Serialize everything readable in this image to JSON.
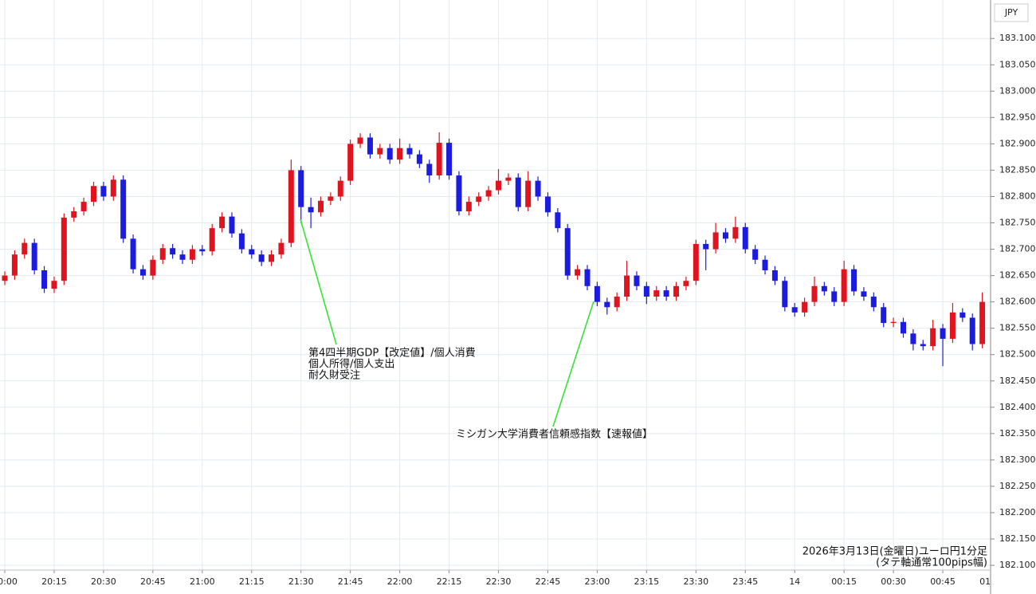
{
  "chart_data": {
    "type": "candlestick",
    "currency": "JPY",
    "footer": [
      "2026年3月13日(金曜日)ユーロ円1分足",
      "(タテ軸通常100pips幅)"
    ],
    "annotations": [
      {
        "lines": [
          "第4四半期GDP【改定値】/個人消費",
          "個人所得/個人支出",
          "耐久財受注"
        ]
      },
      {
        "lines": [
          "ミシガン大学消費者信頼感指数【速報値】"
        ]
      }
    ],
    "up_color": "#e0141e",
    "down_color": "#1c1ce0",
    "annotation_color": "#33e633",
    "grid": true,
    "ylim": [
      182.091,
      183.173
    ],
    "yticks": [
      {
        "value": 182.1,
        "label": "182.100"
      },
      {
        "value": 182.15,
        "label": "182.150"
      },
      {
        "value": 182.2,
        "label": "182.200"
      },
      {
        "value": 182.25,
        "label": "182.250"
      },
      {
        "value": 182.3,
        "label": "182.300"
      },
      {
        "value": 182.35,
        "label": "182.350"
      },
      {
        "value": 182.4,
        "label": "182.400"
      },
      {
        "value": 182.45,
        "label": "182.450"
      },
      {
        "value": 182.5,
        "label": "182.500"
      },
      {
        "value": 182.55,
        "label": "182.550"
      },
      {
        "value": 182.6,
        "label": "182.600"
      },
      {
        "value": 182.65,
        "label": "182.650"
      },
      {
        "value": 182.7,
        "label": "182.700"
      },
      {
        "value": 182.75,
        "label": "182.750"
      },
      {
        "value": 182.8,
        "label": "182.800"
      },
      {
        "value": 182.85,
        "label": "182.850"
      },
      {
        "value": 182.9,
        "label": "182.900"
      },
      {
        "value": 182.95,
        "label": "182.950"
      },
      {
        "value": 183,
        "label": "183.000"
      },
      {
        "value": 183.05,
        "label": "183.050"
      },
      {
        "value": 183.1,
        "label": "183.100"
      }
    ],
    "xticks": [
      "20:00",
      "20:15",
      "20:30",
      "20:45",
      "21:00",
      "21:15",
      "21:30",
      "21:45",
      "22:00",
      "22:15",
      "22:30",
      "22:45",
      "23:00",
      "23:15",
      "23:30",
      "23:45",
      {
        "value": "00:00",
        "label": "14"
      },
      "00:15",
      "00:30",
      "00:45",
      "01:00"
    ],
    "categories": [
      "20:00",
      "20:03",
      "20:06",
      "20:09",
      "20:12",
      "20:15",
      "20:18",
      "20:21",
      "20:24",
      "20:27",
      "20:30",
      "20:33",
      "20:36",
      "20:39",
      "20:42",
      "20:45",
      "20:48",
      "20:51",
      "20:54",
      "20:57",
      "21:00",
      "21:03",
      "21:06",
      "21:09",
      "21:12",
      "21:15",
      "21:18",
      "21:21",
      "21:24",
      "21:27",
      "21:30",
      "21:33",
      "21:36",
      "21:39",
      "21:42",
      "21:45",
      "21:48",
      "21:51",
      "21:54",
      "21:57",
      "22:00",
      "22:03",
      "22:06",
      "22:09",
      "22:12",
      "22:15",
      "22:18",
      "22:21",
      "22:24",
      "22:27",
      "22:30",
      "22:33",
      "22:36",
      "22:39",
      "22:42",
      "22:45",
      "22:48",
      "22:51",
      "22:54",
      "22:57",
      "23:00",
      "23:03",
      "23:06",
      "23:09",
      "23:12",
      "23:15",
      "23:18",
      "23:21",
      "23:24",
      "23:27",
      "23:30",
      "23:33",
      "23:36",
      "23:39",
      "23:42",
      "23:45",
      "23:48",
      "23:51",
      "23:54",
      "23:57",
      "00:00",
      "00:03",
      "00:06",
      "00:09",
      "00:12",
      "00:15",
      "00:18",
      "00:21",
      "00:24",
      "00:27",
      "00:30",
      "00:33",
      "00:36",
      "00:39",
      "00:42",
      "00:45",
      "00:48",
      "00:51",
      "00:54",
      "00:57"
    ],
    "open": [
      182.64,
      182.65,
      182.69,
      182.712,
      182.66,
      182.625,
      182.64,
      182.76,
      182.772,
      182.79,
      182.82,
      182.8,
      182.832,
      182.72,
      182.662,
      182.65,
      182.68,
      182.702,
      182.69,
      182.68,
      182.7,
      182.696,
      182.74,
      182.762,
      182.73,
      182.7,
      182.69,
      182.676,
      182.69,
      182.712,
      182.85,
      182.78,
      182.77,
      182.792,
      182.8,
      182.83,
      182.9,
      182.912,
      182.88,
      182.892,
      182.87,
      182.892,
      182.88,
      182.862,
      182.84,
      182.902,
      182.84,
      182.772,
      182.79,
      182.8,
      182.812,
      182.83,
      182.836,
      182.78,
      182.83,
      182.8,
      182.77,
      182.74,
      182.65,
      182.662,
      182.63,
      182.6,
      182.59,
      182.61,
      182.65,
      182.63,
      182.61,
      182.622,
      182.61,
      182.63,
      182.64,
      182.71,
      182.7,
      182.732,
      182.72,
      182.742,
      182.7,
      182.68,
      182.66,
      182.64,
      182.59,
      182.58,
      182.6,
      182.63,
      182.62,
      182.6,
      182.662,
      182.62,
      182.61,
      182.59,
      182.56,
      182.562,
      182.54,
      182.52,
      182.516,
      182.55,
      182.53,
      182.58,
      182.57,
      182.52
    ],
    "high": [
      182.658,
      182.698,
      182.72,
      182.72,
      182.668,
      182.648,
      182.768,
      182.78,
      182.798,
      182.828,
      182.828,
      182.84,
      182.84,
      182.728,
      182.67,
      182.688,
      182.71,
      182.71,
      182.698,
      182.708,
      182.708,
      182.748,
      182.77,
      182.77,
      182.738,
      182.708,
      182.698,
      182.698,
      182.72,
      182.87,
      182.858,
      182.798,
      182.8,
      182.808,
      182.838,
      182.908,
      182.92,
      182.92,
      182.9,
      182.9,
      182.91,
      182.9,
      182.888,
      182.87,
      182.922,
      182.91,
      182.848,
      182.8,
      182.808,
      182.82,
      182.852,
      182.844,
      182.844,
      182.848,
      182.838,
      182.808,
      182.778,
      182.748,
      182.67,
      182.67,
      182.638,
      182.608,
      182.618,
      182.678,
      182.658,
      182.638,
      182.63,
      182.63,
      182.638,
      182.648,
      182.718,
      182.718,
      182.75,
      182.74,
      182.762,
      182.75,
      182.708,
      182.688,
      182.668,
      182.648,
      182.598,
      182.608,
      182.648,
      182.638,
      182.628,
      182.678,
      182.67,
      182.628,
      182.618,
      182.598,
      182.57,
      182.57,
      182.548,
      182.528,
      182.566,
      182.558,
      182.598,
      182.588,
      182.578,
      182.618
    ],
    "low": [
      182.632,
      182.642,
      182.682,
      182.652,
      182.617,
      182.617,
      182.632,
      182.752,
      182.764,
      182.782,
      182.792,
      182.792,
      182.712,
      182.654,
      182.642,
      182.642,
      182.672,
      182.682,
      182.672,
      182.672,
      182.688,
      182.688,
      182.732,
      182.722,
      182.692,
      182.682,
      182.668,
      182.668,
      182.682,
      182.704,
      182.75,
      182.74,
      182.762,
      182.784,
      182.792,
      182.822,
      182.892,
      182.872,
      182.872,
      182.862,
      182.862,
      182.872,
      182.854,
      182.826,
      182.832,
      182.832,
      182.764,
      182.764,
      182.782,
      182.792,
      182.804,
      182.822,
      182.772,
      182.772,
      182.792,
      182.762,
      182.732,
      182.642,
      182.642,
      182.622,
      182.592,
      182.576,
      182.582,
      182.602,
      182.622,
      182.596,
      182.602,
      182.602,
      182.602,
      182.622,
      182.632,
      182.66,
      182.692,
      182.712,
      182.712,
      182.692,
      182.672,
      182.652,
      182.632,
      182.582,
      182.572,
      182.572,
      182.592,
      182.612,
      182.592,
      182.592,
      182.612,
      182.602,
      182.582,
      182.552,
      182.552,
      182.532,
      182.508,
      182.508,
      182.508,
      182.478,
      182.522,
      182.562,
      182.508,
      182.512
    ],
    "close": [
      182.65,
      182.69,
      182.712,
      182.66,
      182.625,
      182.64,
      182.76,
      182.772,
      182.79,
      182.82,
      182.8,
      182.832,
      182.72,
      182.662,
      182.65,
      182.68,
      182.702,
      182.69,
      182.68,
      182.7,
      182.696,
      182.74,
      182.762,
      182.73,
      182.7,
      182.69,
      182.676,
      182.69,
      182.712,
      182.85,
      182.78,
      182.77,
      182.792,
      182.8,
      182.83,
      182.9,
      182.912,
      182.88,
      182.892,
      182.87,
      182.892,
      182.88,
      182.862,
      182.84,
      182.902,
      182.84,
      182.772,
      182.79,
      182.8,
      182.812,
      182.83,
      182.836,
      182.78,
      182.83,
      182.8,
      182.77,
      182.74,
      182.65,
      182.662,
      182.63,
      182.6,
      182.59,
      182.61,
      182.65,
      182.63,
      182.61,
      182.622,
      182.61,
      182.63,
      182.64,
      182.71,
      182.7,
      182.732,
      182.72,
      182.742,
      182.7,
      182.68,
      182.66,
      182.64,
      182.59,
      182.58,
      182.6,
      182.63,
      182.62,
      182.6,
      182.662,
      182.62,
      182.61,
      182.59,
      182.56,
      182.562,
      182.54,
      182.52,
      182.516,
      182.55,
      182.53,
      182.58,
      182.57,
      182.52,
      182.6
    ]
  }
}
